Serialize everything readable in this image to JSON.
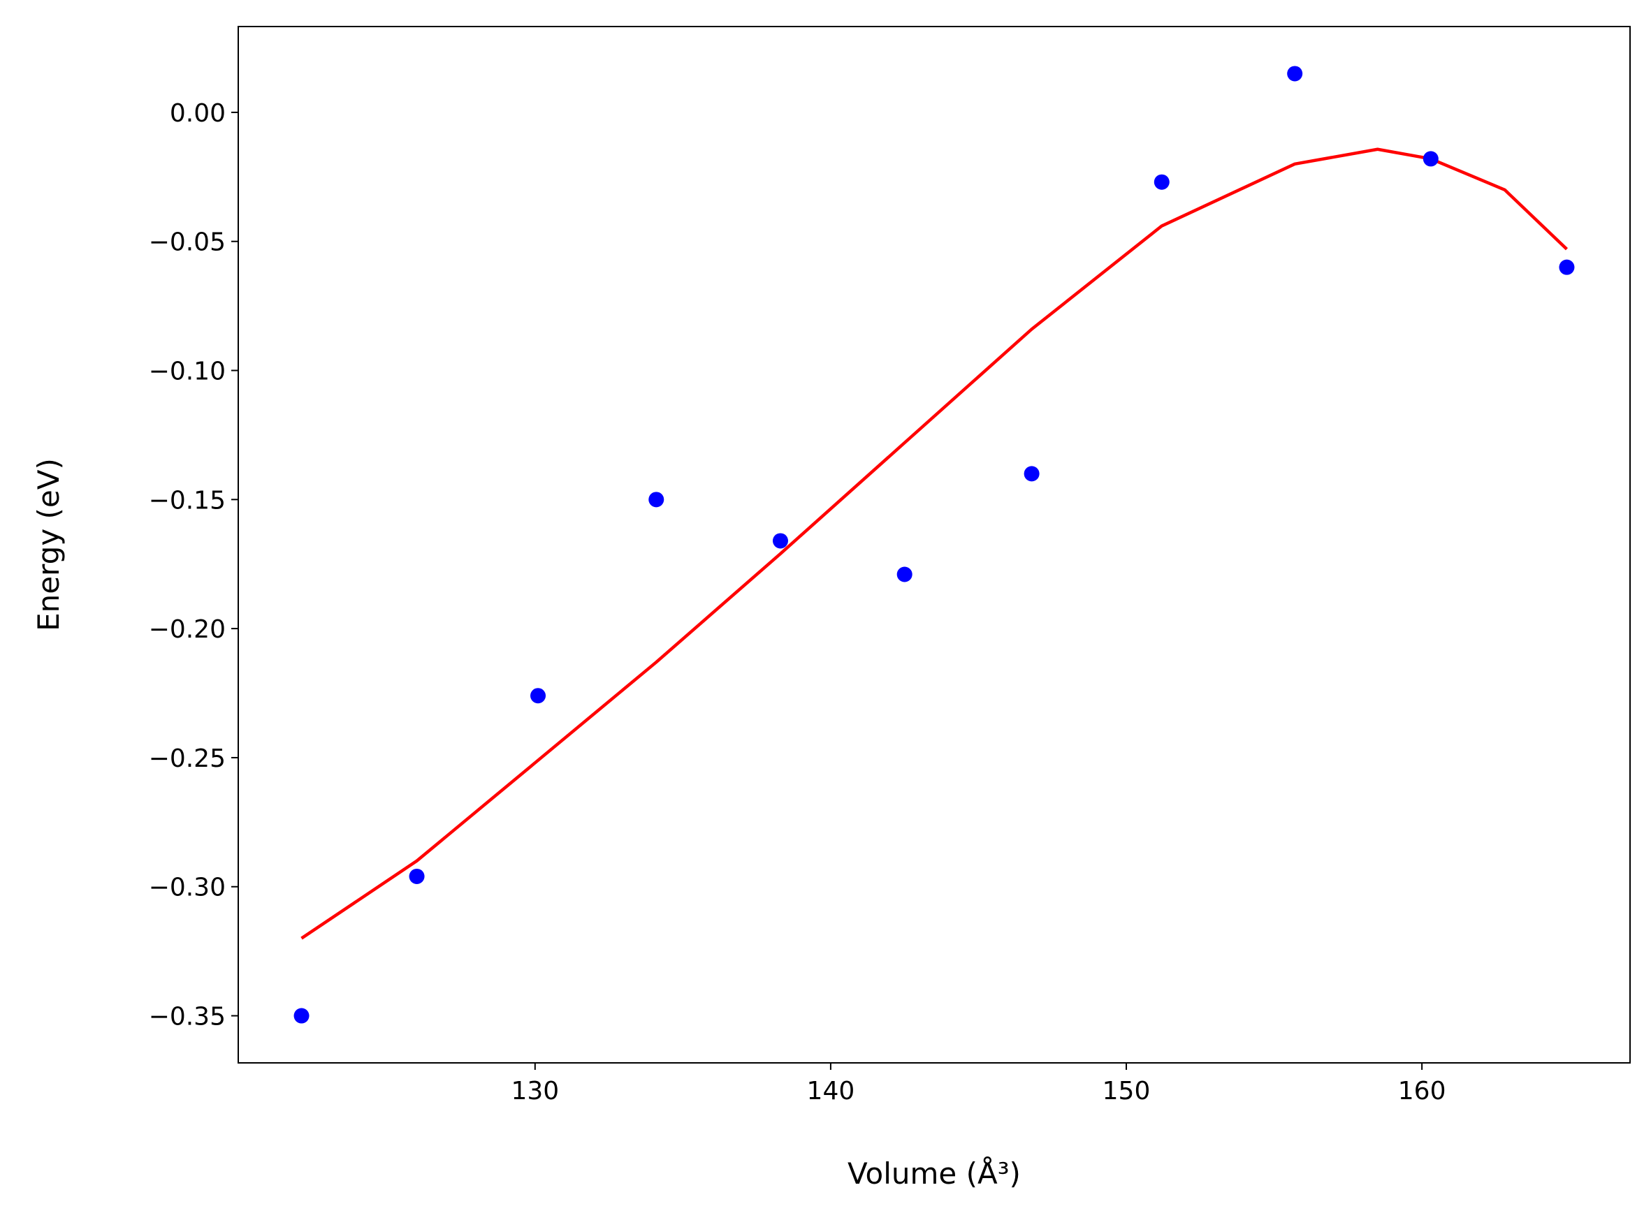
{
  "chart_data": {
    "type": "scatter",
    "xlabel": "Volume (Å³)",
    "ylabel": "Energy (eV)",
    "xlim": [
      119.96,
      167.04
    ],
    "ylim": [
      -0.36825,
      0.03325
    ],
    "xticks": [
      130,
      140,
      150,
      160
    ],
    "yticks": [
      {
        "value": 0,
        "label": "0.00"
      },
      {
        "value": -0.05,
        "label": "−0.05"
      },
      {
        "value": -0.1,
        "label": "−0.10"
      },
      {
        "value": -0.15,
        "label": "−0.15"
      },
      {
        "value": -0.2,
        "label": "−0.20"
      },
      {
        "value": -0.25,
        "label": "−0.25"
      },
      {
        "value": -0.3,
        "label": "−0.30"
      },
      {
        "value": -0.35,
        "label": "−0.35"
      }
    ],
    "series": [
      {
        "kind": "markers",
        "color": "#0000ff",
        "x": [
          122.1,
          126.0,
          130.1,
          134.1,
          138.3,
          142.5,
          146.8,
          151.2,
          155.7,
          160.3,
          164.9
        ],
        "values": [
          -0.35,
          -0.296,
          -0.226,
          -0.15,
          -0.166,
          -0.179,
          -0.14,
          -0.027,
          0.015,
          -0.018,
          -0.06
        ]
      },
      {
        "kind": "line",
        "color": "#ff0000",
        "x": [
          122.1,
          126.0,
          130.0,
          134.1,
          138.3,
          142.5,
          146.8,
          151.2,
          155.7,
          158.5,
          160.3,
          162.8,
          164.9
        ],
        "values": [
          -0.32,
          -0.29,
          -0.252,
          -0.213,
          -0.171,
          -0.128,
          -0.084,
          -0.044,
          -0.02,
          -0.0143,
          -0.018,
          -0.03,
          -0.053
        ]
      }
    ]
  }
}
